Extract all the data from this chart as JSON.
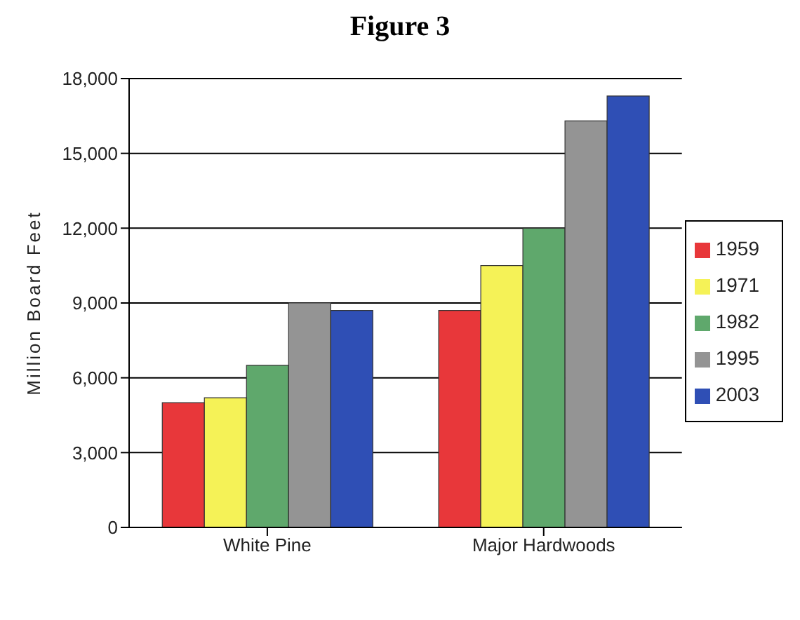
{
  "chart_data": {
    "type": "bar",
    "title": "Figure 3",
    "ylabel": "Million Board Feet",
    "categories": [
      "White Pine",
      "Major Hardwoods"
    ],
    "series": [
      {
        "name": "1959",
        "color": "#e8373a",
        "values": [
          5000,
          8700
        ]
      },
      {
        "name": "1971",
        "color": "#f5f257",
        "values": [
          5200,
          10500
        ]
      },
      {
        "name": "1982",
        "color": "#5fa86c",
        "values": [
          6500,
          12000
        ]
      },
      {
        "name": "1995",
        "color": "#949494",
        "values": [
          9000,
          16300
        ]
      },
      {
        "name": "2003",
        "color": "#2f4fb5",
        "values": [
          8700,
          17300
        ]
      }
    ],
    "ylim": [
      0,
      18000
    ],
    "yticks": [
      {
        "value": 0,
        "label": "0"
      },
      {
        "value": 3000,
        "label": "3,000"
      },
      {
        "value": 6000,
        "label": "6,000"
      },
      {
        "value": 9000,
        "label": "9,000"
      },
      {
        "value": 12000,
        "label": "12,000"
      },
      {
        "value": 15000,
        "label": "15,000"
      },
      {
        "value": 18000,
        "label": "18,000"
      }
    ],
    "grid": "y",
    "legend": "right"
  }
}
